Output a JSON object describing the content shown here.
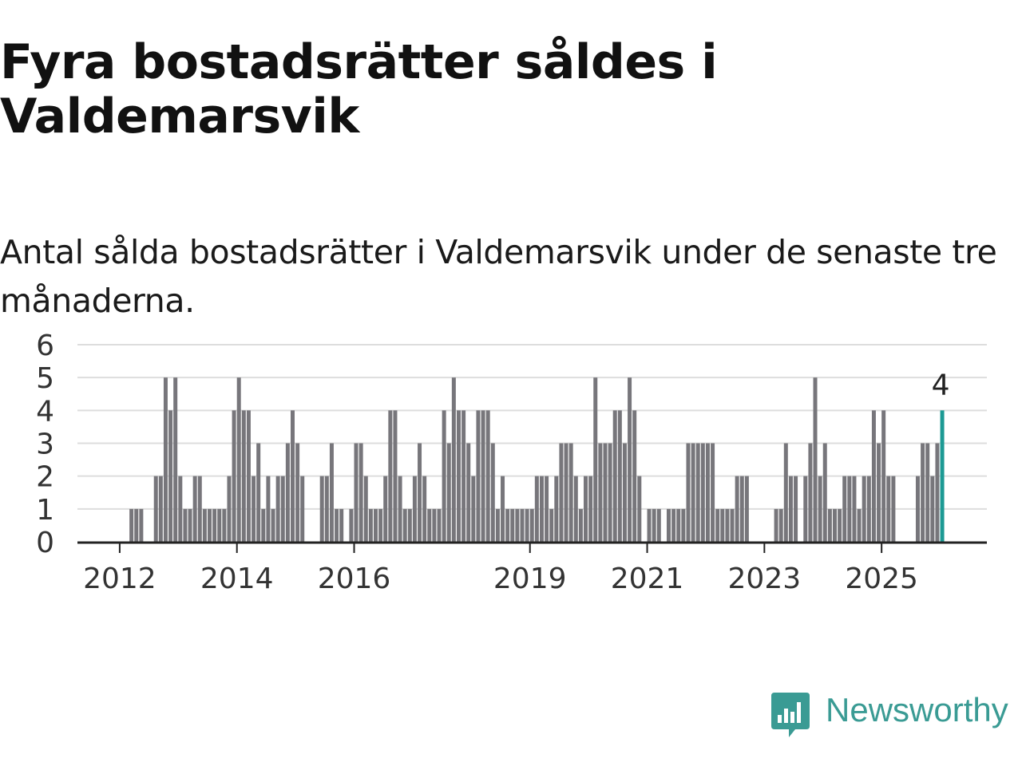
{
  "title": "Fyra bostadsrätter såldes i Valdemarsvik",
  "subtitle": "Antal sålda bostadsrätter i Valdemarsvik under de senaste tre månaderna.",
  "logo": {
    "text": "Newsworthy",
    "icon": "newsworthy-chart-bubble-icon"
  },
  "colors": {
    "bar": "#77767b",
    "highlight": "#1d9a94",
    "grid": "#dddddd",
    "axis": "#222222",
    "brand": "#3a9b94"
  },
  "chart_data": {
    "type": "bar",
    "x_start": "2011-01",
    "frequency": "monthly",
    "values": [
      0,
      0,
      0,
      0,
      0,
      0,
      0,
      0,
      0,
      0,
      0,
      0,
      0,
      0,
      1,
      1,
      1,
      0,
      0,
      2,
      2,
      5,
      4,
      5,
      2,
      1,
      1,
      2,
      2,
      1,
      1,
      1,
      1,
      1,
      2,
      4,
      5,
      4,
      4,
      2,
      3,
      1,
      2,
      1,
      2,
      2,
      3,
      4,
      3,
      2,
      0,
      0,
      0,
      2,
      2,
      3,
      1,
      1,
      0,
      1,
      3,
      3,
      2,
      1,
      1,
      1,
      2,
      4,
      4,
      2,
      1,
      1,
      2,
      3,
      2,
      1,
      1,
      1,
      4,
      3,
      5,
      4,
      4,
      3,
      2,
      4,
      4,
      4,
      3,
      1,
      2,
      1,
      1,
      1,
      1,
      1,
      1,
      2,
      2,
      2,
      1,
      2,
      3,
      3,
      3,
      2,
      1,
      2,
      2,
      5,
      3,
      3,
      3,
      4,
      4,
      3,
      5,
      4,
      2,
      0,
      1,
      1,
      1,
      0,
      1,
      1,
      1,
      1,
      3,
      3,
      3,
      3,
      3,
      3,
      1,
      1,
      1,
      1,
      2,
      2,
      2,
      0,
      0,
      0,
      0,
      0,
      1,
      1,
      3,
      2,
      2,
      0,
      2,
      3,
      5,
      2,
      3,
      1,
      1,
      1,
      2,
      2,
      2,
      1,
      2,
      2,
      4,
      3,
      4,
      2,
      2,
      0,
      0,
      0,
      0,
      2,
      3,
      3,
      2,
      3,
      4
    ],
    "highlight": {
      "index": 180,
      "label": "4"
    },
    "x_ticks": [
      {
        "label": "2012",
        "index": 12
      },
      {
        "label": "2014",
        "index": 36
      },
      {
        "label": "2016",
        "index": 60
      },
      {
        "label": "2019",
        "index": 96
      },
      {
        "label": "2021",
        "index": 120
      },
      {
        "label": "2023",
        "index": 144
      },
      {
        "label": "2025",
        "index": 168
      }
    ],
    "y_ticks": [
      0,
      1,
      2,
      3,
      4,
      5,
      6
    ],
    "ylim": [
      0,
      6
    ],
    "grid": true,
    "legend": "none"
  }
}
